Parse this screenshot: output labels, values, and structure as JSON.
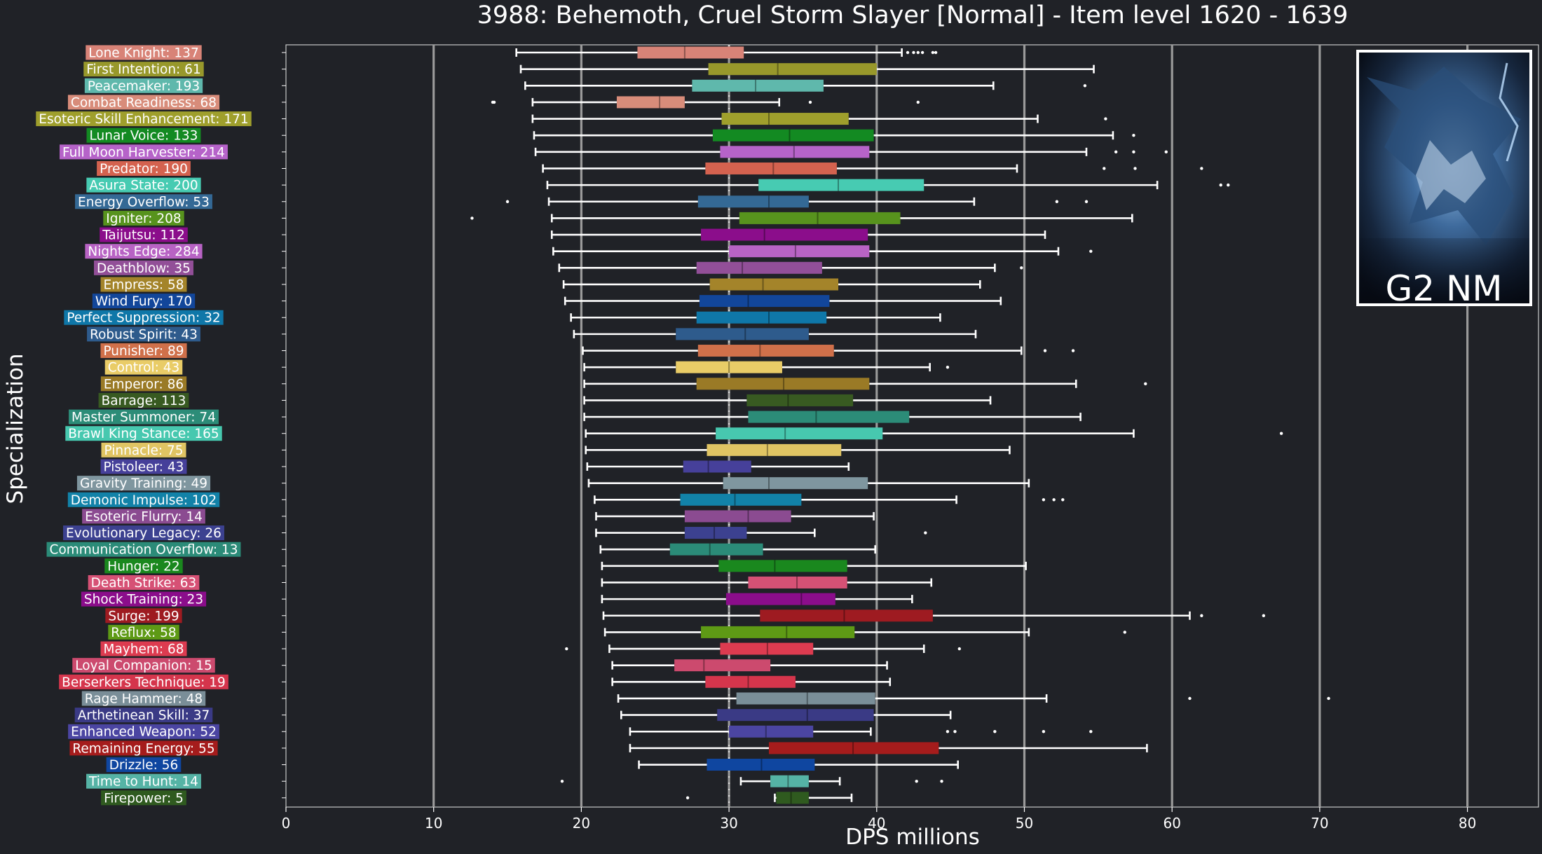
{
  "chart_data": {
    "type": "boxplot",
    "title": "3988: Behemoth, Cruel Storm Slayer [Normal] - Item level 1620 - 1639",
    "xlabel": "DPS millions",
    "ylabel": "Specialization",
    "xlim": [
      0,
      85
    ],
    "xticks": [
      0,
      10,
      20,
      30,
      40,
      50,
      60,
      70,
      80
    ],
    "grid": "vertical",
    "median_line": 30,
    "badge": {
      "text": "G2 NM",
      "placement": "top-right"
    },
    "series": [
      {
        "label": "Lone Knight: 137",
        "color": "#d88377",
        "whisker_low": 15.6,
        "q1": 23.8,
        "median": 27,
        "q3": 31,
        "whisker_high": 41.7,
        "outliers": [
          42.1,
          42.5,
          42.8,
          43.1,
          43.8,
          44
        ]
      },
      {
        "label": "First Intention: 61",
        "color": "#98982b",
        "whisker_low": 15.9,
        "q1": 28.6,
        "median": 33.3,
        "q3": 40,
        "whisker_high": 54.7,
        "outliers": []
      },
      {
        "label": "Peacemaker: 193",
        "color": "#5fb8ac",
        "whisker_low": 16.2,
        "q1": 27.5,
        "median": 31.8,
        "q3": 36.4,
        "whisker_high": 47.9,
        "outliers": [
          54.1
        ]
      },
      {
        "label": "Combat Readiness: 68",
        "color": "#d88c7a",
        "whisker_low": 16.7,
        "q1": 22.4,
        "median": 25.3,
        "q3": 27,
        "whisker_high": 33.4,
        "outliers": [
          14,
          14.1,
          35.5,
          42.8
        ]
      },
      {
        "label": "Esoteric Skill Enhancement: 171",
        "color": "#9f9f2c",
        "whisker_low": 16.7,
        "q1": 29.5,
        "median": 32.7,
        "q3": 38.1,
        "whisker_high": 50.9,
        "outliers": [
          55.5
        ]
      },
      {
        "label": "Lunar Voice: 133",
        "color": "#138a22",
        "whisker_low": 16.8,
        "q1": 28.9,
        "median": 34.1,
        "q3": 39.8,
        "whisker_high": 56,
        "outliers": [
          57.4
        ]
      },
      {
        "label": "Full Moon Harvester: 214",
        "color": "#b663c9",
        "whisker_low": 16.9,
        "q1": 29.4,
        "median": 34.4,
        "q3": 39.5,
        "whisker_high": 54.2,
        "outliers": [
          56.2,
          57.4,
          59.6
        ]
      },
      {
        "label": "Predator: 190",
        "color": "#d4624f",
        "whisker_low": 17.4,
        "q1": 28.4,
        "median": 33,
        "q3": 37.3,
        "whisker_high": 49.5,
        "outliers": [
          55.4,
          57.5,
          62
        ]
      },
      {
        "label": "Asura State: 200",
        "color": "#47cbb2",
        "whisker_low": 17.7,
        "q1": 32,
        "median": 37.4,
        "q3": 43.2,
        "whisker_high": 59,
        "outliers": [
          63.3,
          63.8
        ]
      },
      {
        "label": "Energy Overflow: 53",
        "color": "#346995",
        "whisker_low": 17.8,
        "q1": 27.9,
        "median": 32.7,
        "q3": 35.4,
        "whisker_high": 46.6,
        "outliers": [
          15,
          52.2,
          54.2
        ]
      },
      {
        "label": "Igniter: 208",
        "color": "#57931d",
        "whisker_low": 18,
        "q1": 30.7,
        "median": 36,
        "q3": 41.6,
        "whisker_high": 57.3,
        "outliers": [
          12.6
        ]
      },
      {
        "label": "Taijutsu: 112",
        "color": "#8b0d8b",
        "whisker_low": 18,
        "q1": 28.1,
        "median": 32.4,
        "q3": 39.4,
        "whisker_high": 51.4,
        "outliers": []
      },
      {
        "label": "Nights Edge: 284",
        "color": "#b863c4",
        "whisker_low": 18.1,
        "q1": 30,
        "median": 34.5,
        "q3": 39.5,
        "whisker_high": 52.3,
        "outliers": [
          54.5
        ]
      },
      {
        "label": "Deathblow: 35",
        "color": "#924f98",
        "whisker_low": 18.5,
        "q1": 27.8,
        "median": 30.9,
        "q3": 36.3,
        "whisker_high": 48,
        "outliers": [
          49.8
        ]
      },
      {
        "label": "Empress: 58",
        "color": "#a4842a",
        "whisker_low": 18.8,
        "q1": 28.7,
        "median": 32.3,
        "q3": 37.4,
        "whisker_high": 47,
        "outliers": []
      },
      {
        "label": "Wind Fury: 170",
        "color": "#12469a",
        "whisker_low": 18.9,
        "q1": 28,
        "median": 31.3,
        "q3": 36.8,
        "whisker_high": 48.4,
        "outliers": []
      },
      {
        "label": "Perfect Suppression: 32",
        "color": "#0f77a8",
        "whisker_low": 19.3,
        "q1": 27.8,
        "median": 32.7,
        "q3": 36.6,
        "whisker_high": 44.3,
        "outliers": []
      },
      {
        "label": "Robust Spirit: 43",
        "color": "#2e5b8c",
        "whisker_low": 19.5,
        "q1": 26.4,
        "median": 31.1,
        "q3": 35.4,
        "whisker_high": 46.7,
        "outliers": []
      },
      {
        "label": "Punisher: 89",
        "color": "#d0704a",
        "whisker_low": 20.1,
        "q1": 27.9,
        "median": 32.1,
        "q3": 37.1,
        "whisker_high": 49.8,
        "outliers": [
          51.4,
          53.3
        ]
      },
      {
        "label": "Control: 43",
        "color": "#e9cc67",
        "whisker_low": 20.2,
        "q1": 26.4,
        "median": 30,
        "q3": 33.6,
        "whisker_high": 43.6,
        "outliers": [
          44.8
        ]
      },
      {
        "label": "Emperor: 86",
        "color": "#9a7a26",
        "whisker_low": 20.2,
        "q1": 27.8,
        "median": 33.7,
        "q3": 39.5,
        "whisker_high": 53.5,
        "outliers": [
          58.2
        ]
      },
      {
        "label": "Barrage: 113",
        "color": "#385a21",
        "whisker_low": 20.2,
        "q1": 31.2,
        "median": 34,
        "q3": 38.4,
        "whisker_high": 47.7,
        "outliers": []
      },
      {
        "label": "Master Summoner: 74",
        "color": "#2c8c78",
        "whisker_low": 20.2,
        "q1": 31.3,
        "median": 35.9,
        "q3": 42.2,
        "whisker_high": 53.8,
        "outliers": []
      },
      {
        "label": "Brawl King Stance: 165",
        "color": "#47c8af",
        "whisker_low": 20.3,
        "q1": 29.1,
        "median": 33.8,
        "q3": 40.4,
        "whisker_high": 57.4,
        "outliers": [
          67.4
        ]
      },
      {
        "label": "Pinnacle: 75",
        "color": "#e0c463",
        "whisker_low": 20.3,
        "q1": 28.5,
        "median": 32.6,
        "q3": 37.6,
        "whisker_high": 49,
        "outliers": []
      },
      {
        "label": "Pistoleer: 43",
        "color": "#46409a",
        "whisker_low": 20.4,
        "q1": 26.9,
        "median": 28.6,
        "q3": 31.5,
        "whisker_high": 38.1,
        "outliers": []
      },
      {
        "label": "Gravity Training: 49",
        "color": "#7f969f",
        "whisker_low": 20.5,
        "q1": 29.6,
        "median": 32.7,
        "q3": 39.4,
        "whisker_high": 50.3,
        "outliers": []
      },
      {
        "label": "Demonic Impulse: 102",
        "color": "#1282a8",
        "whisker_low": 20.9,
        "q1": 26.7,
        "median": 30.4,
        "q3": 34.9,
        "whisker_high": 45.4,
        "outliers": [
          51.3,
          52,
          52.6
        ]
      },
      {
        "label": "Esoteric Flurry: 14",
        "color": "#8b4b91",
        "whisker_low": 21,
        "q1": 27,
        "median": 31.3,
        "q3": 34.2,
        "whisker_high": 39.8,
        "outliers": []
      },
      {
        "label": "Evolutionary Legacy: 26",
        "color": "#3c4190",
        "whisker_low": 21,
        "q1": 27,
        "median": 29,
        "q3": 31.2,
        "whisker_high": 35.8,
        "outliers": [
          43.3
        ]
      },
      {
        "label": "Communication Overflow: 13",
        "color": "#2b8b78",
        "whisker_low": 21.3,
        "q1": 26,
        "median": 28.7,
        "q3": 32.3,
        "whisker_high": 39.9,
        "outliers": []
      },
      {
        "label": "Hunger: 22",
        "color": "#1a881e",
        "whisker_low": 21.4,
        "q1": 29.3,
        "median": 33.1,
        "q3": 38,
        "whisker_high": 50.1,
        "outliers": []
      },
      {
        "label": "Death Strike: 63",
        "color": "#d65175",
        "whisker_low": 21.4,
        "q1": 31.3,
        "median": 34.6,
        "q3": 38,
        "whisker_high": 43.7,
        "outliers": []
      },
      {
        "label": "Shock Training: 23",
        "color": "#8b0d8b",
        "whisker_low": 21.4,
        "q1": 29.8,
        "median": 34.9,
        "q3": 37.2,
        "whisker_high": 42.4,
        "outliers": []
      },
      {
        "label": "Surge: 199",
        "color": "#9e1b21",
        "whisker_low": 21.5,
        "q1": 32.1,
        "median": 37.8,
        "q3": 43.8,
        "whisker_high": 61.2,
        "outliers": [
          62,
          66.2
        ]
      },
      {
        "label": "Reflux: 58",
        "color": "#5e9a15",
        "whisker_low": 21.6,
        "q1": 28.1,
        "median": 33.9,
        "q3": 38.5,
        "whisker_high": 50.3,
        "outliers": [
          56.8
        ]
      },
      {
        "label": "Mayhem: 68",
        "color": "#dd3b50",
        "whisker_low": 21.9,
        "q1": 29.4,
        "median": 32.6,
        "q3": 35.7,
        "whisker_high": 43.2,
        "outliers": [
          19,
          45.6
        ]
      },
      {
        "label": "Loyal Companion: 15",
        "color": "#cc4a6e",
        "whisker_low": 22.1,
        "q1": 26.3,
        "median": 28.3,
        "q3": 32.8,
        "whisker_high": 40.7,
        "outliers": []
      },
      {
        "label": "Berserkers Technique: 19",
        "color": "#d5354c",
        "whisker_low": 22.1,
        "q1": 28.4,
        "median": 31.3,
        "q3": 34.5,
        "whisker_high": 40.9,
        "outliers": []
      },
      {
        "label": "Rage Hammer: 48",
        "color": "#7a8e98",
        "whisker_low": 22.5,
        "q1": 30.5,
        "median": 35.3,
        "q3": 39.9,
        "whisker_high": 51.5,
        "outliers": [
          61.2,
          70.6
        ]
      },
      {
        "label": "Arthetinean Skill: 37",
        "color": "#3a3a85",
        "whisker_low": 22.7,
        "q1": 29.2,
        "median": 35.3,
        "q3": 39.8,
        "whisker_high": 45,
        "outliers": []
      },
      {
        "label": "Enhanced Weapon: 52",
        "color": "#4b45a2",
        "whisker_low": 23.3,
        "q1": 30,
        "median": 32.5,
        "q3": 35.7,
        "whisker_high": 39.6,
        "outliers": [
          44.8,
          45.3,
          48,
          51.3,
          54.5
        ]
      },
      {
        "label": "Remaining Energy: 55",
        "color": "#a51c1c",
        "whisker_low": 23.3,
        "q1": 32.7,
        "median": 38.4,
        "q3": 44.2,
        "whisker_high": 58.3,
        "outliers": []
      },
      {
        "label": "Drizzle: 56",
        "color": "#0f46a0",
        "whisker_low": 23.9,
        "q1": 28.5,
        "median": 32.2,
        "q3": 35.8,
        "whisker_high": 45.5,
        "outliers": []
      },
      {
        "label": "Time to Hunt: 14",
        "color": "#55b3a5",
        "whisker_low": 30.8,
        "q1": 32.8,
        "median": 34,
        "q3": 35.4,
        "whisker_high": 37.5,
        "outliers": [
          18.7,
          42.7,
          44.4
        ]
      },
      {
        "label": "Firepower: 5",
        "color": "#2f5a1f",
        "whisker_low": 33.1,
        "q1": 33.2,
        "median": 34.2,
        "q3": 35.4,
        "whisker_high": 38.3,
        "outliers": [
          27.2
        ]
      }
    ]
  }
}
